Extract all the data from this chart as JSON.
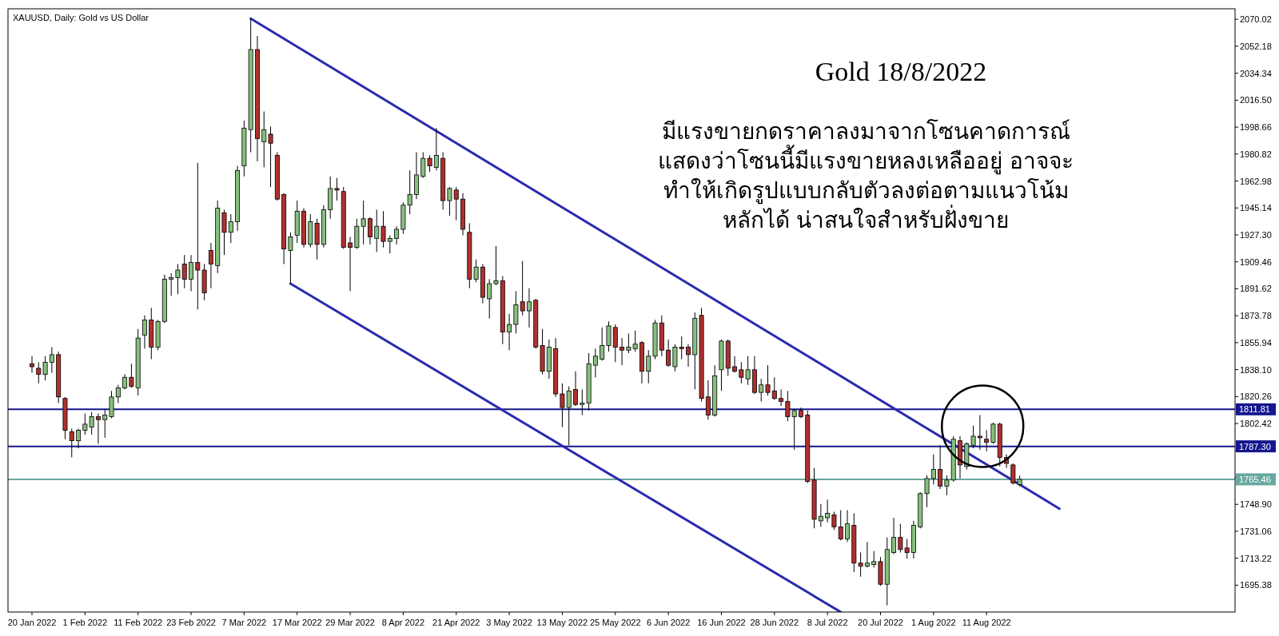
{
  "chart_data": {
    "type": "candlestick",
    "title": "XAUUSD, Daily: Gold vs US Dollar",
    "categories": [
      "20 Jan 2022",
      null,
      null,
      null,
      null,
      null,
      null,
      null,
      "1 Feb 2022",
      null,
      null,
      null,
      null,
      null,
      null,
      null,
      "11 Feb 2022",
      null,
      null,
      null,
      null,
      null,
      null,
      null,
      "23 Feb 2022",
      null,
      null,
      null,
      null,
      null,
      null,
      null,
      "7 Mar 2022",
      null,
      null,
      null,
      null,
      null,
      null,
      null,
      "17 Mar 2022",
      null,
      null,
      null,
      null,
      null,
      null,
      null,
      "29 Mar 2022",
      null,
      null,
      null,
      null,
      null,
      null,
      null,
      "8 Apr 2022",
      null,
      null,
      null,
      null,
      null,
      null,
      null,
      "21 Apr 2022",
      null,
      null,
      null,
      null,
      null,
      null,
      null,
      "3 May 2022",
      null,
      null,
      null,
      null,
      null,
      null,
      null,
      "13 May 2022",
      null,
      null,
      null,
      null,
      null,
      null,
      null,
      "25 May 2022",
      null,
      null,
      null,
      null,
      null,
      null,
      null,
      "6 Jun 2022",
      null,
      null,
      null,
      null,
      null,
      null,
      null,
      "16 Jun 2022",
      null,
      null,
      null,
      null,
      null,
      null,
      null,
      "28 Jun 2022",
      null,
      null,
      null,
      null,
      null,
      null,
      null,
      "8 Jul 2022",
      null,
      null,
      null,
      null,
      null,
      null,
      null,
      "20 Jul 2022",
      null,
      null,
      null,
      null,
      null,
      null,
      null,
      "1 Aug 2022",
      null,
      null,
      null,
      null,
      null,
      null,
      null,
      "11 Aug 2022",
      null,
      null,
      null,
      null,
      null,
      null,
      null,
      null,
      null,
      null,
      null,
      null,
      null,
      null,
      null,
      null,
      null,
      null,
      null,
      null,
      null,
      null,
      null,
      null,
      null,
      null,
      null,
      null,
      null,
      null,
      null,
      null,
      null,
      null,
      null,
      null,
      null
    ],
    "ohlc": [
      [
        1842,
        1847,
        1836,
        1840
      ],
      [
        1839,
        1843,
        1829,
        1835
      ],
      [
        1835,
        1847,
        1831,
        1843
      ],
      [
        1843,
        1853,
        1836,
        1848
      ],
      [
        1848,
        1850,
        1816,
        1820
      ],
      [
        1819,
        1820,
        1792,
        1798
      ],
      [
        1797,
        1799,
        1780,
        1791
      ],
      [
        1791,
        1799,
        1786,
        1798
      ],
      [
        1798,
        1809,
        1795,
        1802
      ],
      [
        1800,
        1810,
        1795,
        1807
      ],
      [
        1807,
        1809,
        1789,
        1805
      ],
      [
        1805,
        1812,
        1793,
        1808
      ],
      [
        1807,
        1824,
        1806,
        1820
      ],
      [
        1820,
        1828,
        1816,
        1826
      ],
      [
        1826,
        1835,
        1825,
        1833
      ],
      [
        1833,
        1842,
        1826,
        1827
      ],
      [
        1826,
        1865,
        1821,
        1859
      ],
      [
        1861,
        1874,
        1852,
        1871
      ],
      [
        1871,
        1879,
        1845,
        1853
      ],
      [
        1853,
        1871,
        1851,
        1870
      ],
      [
        1870,
        1901,
        1869,
        1898
      ],
      [
        1898,
        1902,
        1887,
        1899
      ],
      [
        1899,
        1908,
        1888,
        1904
      ],
      [
        1908,
        1914,
        1892,
        1898
      ],
      [
        1898,
        1914,
        1890,
        1909
      ],
      [
        1909,
        1975,
        1878,
        1904
      ],
      [
        1904,
        1908,
        1884,
        1889
      ],
      [
        1917,
        1922,
        1892,
        1908
      ],
      [
        1907,
        1950,
        1902,
        1945
      ],
      [
        1942,
        1944,
        1914,
        1929
      ],
      [
        1929,
        1941,
        1922,
        1936
      ],
      [
        1936,
        1973,
        1930,
        1970
      ],
      [
        1973,
        2003,
        1966,
        1998
      ],
      [
        1997,
        2070.5,
        1982,
        2050
      ],
      [
        2050,
        2059,
        1976,
        1991
      ],
      [
        1989,
        2009,
        1972,
        1997
      ],
      [
        1994,
        1999,
        1959,
        1988
      ],
      [
        1980,
        1982,
        1950,
        1951
      ],
      [
        1954,
        1955,
        1908,
        1918
      ],
      [
        1917,
        1929,
        1895,
        1926
      ],
      [
        1927,
        1950,
        1922,
        1943
      ],
      [
        1943,
        1945,
        1919,
        1921
      ],
      [
        1921,
        1941,
        1919,
        1936
      ],
      [
        1935,
        1938,
        1911,
        1921
      ],
      [
        1921,
        1947,
        1919,
        1944
      ],
      [
        1944,
        1966,
        1938,
        1958
      ],
      [
        1958,
        1965,
        1950,
        1957
      ],
      [
        1956,
        1959,
        1918,
        1919
      ],
      [
        1922,
        1926,
        1890,
        1919
      ],
      [
        1919,
        1938,
        1918,
        1933
      ],
      [
        1933,
        1950,
        1921,
        1938
      ],
      [
        1938,
        1939,
        1921,
        1926
      ],
      [
        1925,
        1944,
        1916,
        1933
      ],
      [
        1933,
        1943,
        1919,
        1923
      ],
      [
        1923,
        1927,
        1915,
        1925
      ],
      [
        1925,
        1933,
        1921,
        1931
      ],
      [
        1931,
        1949,
        1928,
        1947
      ],
      [
        1947,
        1970,
        1941,
        1954
      ],
      [
        1954,
        1982,
        1951,
        1967
      ],
      [
        1966,
        1982,
        1965,
        1978
      ],
      [
        1978,
        1980,
        1969,
        1973
      ],
      [
        1972,
        1998,
        1970,
        1980
      ],
      [
        1978,
        1982,
        1944,
        1950
      ],
      [
        1950,
        1959,
        1940,
        1958
      ],
      [
        1957,
        1959,
        1937,
        1951
      ],
      [
        1951,
        1955,
        1927,
        1931
      ],
      [
        1929,
        1935,
        1892,
        1898
      ],
      [
        1898,
        1911,
        1896,
        1906
      ],
      [
        1906,
        1908,
        1882,
        1886
      ],
      [
        1885,
        1898,
        1872,
        1895
      ],
      [
        1895,
        1920,
        1894,
        1897
      ],
      [
        1897,
        1900,
        1855,
        1863
      ],
      [
        1863,
        1875,
        1851,
        1868
      ],
      [
        1868,
        1890,
        1862,
        1881
      ],
      [
        1883,
        1910,
        1874,
        1877
      ],
      [
        1877,
        1892,
        1866,
        1883
      ],
      [
        1884,
        1885,
        1852,
        1853
      ],
      [
        1854,
        1865,
        1835,
        1837
      ],
      [
        1837,
        1858,
        1832,
        1853
      ],
      [
        1852,
        1859,
        1820,
        1822
      ],
      [
        1822,
        1829,
        1800,
        1813
      ],
      [
        1813,
        1827,
        1788,
        1824
      ],
      [
        1825,
        1837,
        1814,
        1815
      ],
      [
        1815,
        1825,
        1808,
        1816
      ],
      [
        1816,
        1849,
        1811,
        1842
      ],
      [
        1841,
        1852,
        1833,
        1847
      ],
      [
        1845,
        1866,
        1844,
        1854
      ],
      [
        1854,
        1870,
        1850,
        1867
      ],
      [
        1866,
        1868,
        1843,
        1853
      ],
      [
        1853,
        1859,
        1841,
        1851
      ],
      [
        1851,
        1862,
        1849,
        1853
      ],
      [
        1852,
        1864,
        1850,
        1855
      ],
      [
        1856,
        1857,
        1829,
        1837
      ],
      [
        1837,
        1851,
        1829,
        1847
      ],
      [
        1847,
        1871,
        1845,
        1869
      ],
      [
        1869,
        1874,
        1847,
        1851
      ],
      [
        1851,
        1858,
        1840,
        1841
      ],
      [
        1840,
        1855,
        1837,
        1853
      ],
      [
        1853,
        1860,
        1845,
        1852
      ],
      [
        1853,
        1855,
        1840,
        1848
      ],
      [
        1848,
        1876,
        1825,
        1872
      ],
      [
        1874,
        1879,
        1817,
        1819
      ],
      [
        1820,
        1831,
        1805,
        1808
      ],
      [
        1808,
        1841,
        1807,
        1834
      ],
      [
        1838,
        1858,
        1824,
        1857
      ],
      [
        1857,
        1858,
        1834,
        1839
      ],
      [
        1840,
        1847,
        1836,
        1837
      ],
      [
        1838,
        1843,
        1829,
        1833
      ],
      [
        1832,
        1847,
        1828,
        1838
      ],
      [
        1838,
        1847,
        1822,
        1823
      ],
      [
        1823,
        1832,
        1817,
        1828
      ],
      [
        1828,
        1841,
        1821,
        1823
      ],
      [
        1824,
        1833,
        1818,
        1819
      ],
      [
        1819,
        1825,
        1814,
        1817
      ],
      [
        1817,
        1824,
        1804,
        1807
      ],
      [
        1807,
        1812,
        1785,
        1811
      ],
      [
        1811,
        1813,
        1806,
        1807
      ],
      [
        1808,
        1811,
        1763,
        1764
      ],
      [
        1765,
        1773,
        1733,
        1739
      ],
      [
        1738,
        1749,
        1734,
        1741
      ],
      [
        1740,
        1752,
        1737,
        1743
      ],
      [
        1742,
        1744,
        1732,
        1734
      ],
      [
        1734,
        1745,
        1725,
        1726
      ],
      [
        1726,
        1745,
        1724,
        1736
      ],
      [
        1735,
        1743,
        1704,
        1710
      ],
      [
        1710,
        1717,
        1701,
        1708
      ],
      [
        1708,
        1724,
        1707,
        1710
      ],
      [
        1709,
        1718,
        1707,
        1711
      ],
      [
        1711,
        1714,
        1695,
        1696
      ],
      [
        1696,
        1727,
        1682,
        1719
      ],
      [
        1717,
        1740,
        1716,
        1727
      ],
      [
        1727,
        1736,
        1717,
        1719
      ],
      [
        1720,
        1726,
        1713,
        1717
      ],
      [
        1717,
        1738,
        1713,
        1735
      ],
      [
        1734,
        1757,
        1733,
        1756
      ],
      [
        1756,
        1768,
        1747,
        1766
      ],
      [
        1766,
        1782,
        1762,
        1772
      ],
      [
        1772,
        1788,
        1759,
        1761
      ],
      [
        1761,
        1768,
        1755,
        1765
      ],
      [
        1765,
        1794,
        1764,
        1792
      ],
      [
        1791,
        1794,
        1766,
        1775
      ],
      [
        1774,
        1790,
        1772,
        1789
      ],
      [
        1788,
        1801,
        1786,
        1794
      ],
      [
        1794,
        1808,
        1785,
        1793
      ],
      [
        1792,
        1798,
        1784,
        1790
      ],
      [
        1790,
        1803,
        1789,
        1802
      ],
      [
        1802,
        1803,
        1774,
        1780
      ],
      [
        1780,
        1782,
        1773,
        1776
      ],
      [
        1775,
        1776,
        1762,
        1763
      ],
      [
        1762,
        1768,
        1761,
        1765.46
      ],
      null,
      null,
      null,
      null,
      null,
      null,
      null,
      null,
      null,
      null,
      null,
      null,
      null,
      null,
      null,
      null,
      null,
      null,
      null,
      null,
      null,
      null,
      null,
      null,
      null,
      null,
      null,
      null,
      null,
      null,
      null,
      null
    ],
    "series": [
      {
        "type": "line",
        "color": "#2a2ab0",
        "values": [
          null,
          null,
          null,
          null,
          null,
          null,
          null,
          null,
          null,
          null,
          null,
          null,
          null,
          null,
          null,
          null,
          null,
          null,
          null,
          null,
          null,
          null,
          null,
          null,
          null,
          null,
          null,
          null,
          null,
          null,
          null,
          null,
          null,
          2070.5,
          null,
          null,
          null,
          null,
          null,
          null,
          null,
          null,
          null,
          null,
          null,
          null,
          null,
          null,
          null,
          null,
          null,
          null,
          null,
          null,
          null,
          null,
          null,
          null,
          null,
          null,
          null,
          null,
          null,
          null,
          null,
          null,
          null,
          null,
          null,
          null,
          null,
          null,
          null,
          null,
          null,
          null,
          null,
          null,
          null,
          null,
          null,
          null,
          null,
          null,
          null,
          null,
          null,
          null,
          null,
          null,
          null,
          null,
          null,
          null,
          null,
          null,
          null,
          null,
          null,
          null,
          null,
          null,
          null,
          null,
          null,
          null,
          null,
          null,
          null,
          null,
          null,
          null,
          null,
          null,
          null,
          null,
          null,
          null,
          null,
          null,
          null,
          null,
          null,
          null,
          null,
          null,
          null,
          null,
          null,
          null,
          null,
          null,
          null,
          null,
          null,
          null,
          null,
          null,
          null,
          null,
          null,
          null,
          null,
          null,
          null,
          null,
          null,
          null,
          null,
          null,
          null,
          null,
          null,
          null,
          null,
          1746,
          null,
          null,
          null,
          null,
          null,
          null,
          null,
          null,
          null,
          null,
          null,
          null,
          null,
          null,
          null,
          null,
          null,
          null,
          null,
          null,
          null,
          null,
          null,
          null,
          null,
          null
        ]
      },
      {
        "type": "line",
        "color": "#2a2ab0",
        "values": [
          null,
          null,
          null,
          null,
          null,
          null,
          null,
          null,
          null,
          null,
          null,
          null,
          null,
          null,
          null,
          null,
          null,
          null,
          null,
          null,
          null,
          null,
          null,
          null,
          null,
          null,
          null,
          null,
          null,
          null,
          null,
          null,
          null,
          null,
          null,
          null,
          null,
          null,
          null,
          1895,
          null,
          null,
          null,
          null,
          null,
          null,
          null,
          null,
          null,
          null,
          null,
          null,
          null,
          null,
          null,
          null,
          null,
          null,
          null,
          null,
          null,
          null,
          null,
          null,
          null,
          null,
          null,
          null,
          null,
          null,
          null,
          null,
          null,
          null,
          null,
          null,
          null,
          null,
          null,
          null,
          null,
          null,
          null,
          null,
          null,
          null,
          null,
          null,
          null,
          null,
          null,
          null,
          null,
          null,
          null,
          null,
          null,
          null,
          null,
          null,
          null,
          null,
          null,
          null,
          null,
          null,
          null,
          null,
          null,
          null,
          null,
          null,
          null,
          null,
          null,
          null,
          null,
          null,
          null,
          null,
          null,
          null,
          1677.6,
          null,
          null,
          null,
          null,
          null,
          null,
          null,
          null,
          null,
          null,
          null,
          null,
          null,
          null,
          null,
          null,
          null,
          null,
          null,
          null,
          null,
          null,
          null,
          null,
          null,
          null,
          null,
          null,
          null,
          null,
          null,
          null,
          null,
          null,
          null,
          null,
          null,
          null,
          null,
          null,
          null,
          null,
          null,
          null,
          null,
          null,
          null,
          null,
          null,
          null,
          null,
          null,
          null,
          null,
          null,
          null,
          null,
          null,
          null
        ]
      }
    ],
    "ylim": [
      1677.6,
      2077
    ],
    "yticks": [
      2070.02,
      2052.18,
      2034.34,
      {
        "value": 2016.5,
        "label": "2016.50"
      },
      1998.66,
      1980.82,
      1962.98,
      1945.14,
      {
        "value": 1927.3,
        "label": "1927.30"
      },
      1909.46,
      1891.62,
      1873.78,
      1855.94,
      {
        "value": 1838.1,
        "label": "1838.10"
      },
      1820.26,
      1802.42,
      {
        "value": 1784.58,
        "label": null
      },
      {
        "value": 1766.74,
        "label": null
      },
      {
        "value": 1748.9,
        "label": "1748.90"
      },
      1731.06,
      1713.22,
      1695.38
    ],
    "ref_lines": [
      {
        "axis": "y",
        "value": 1811.81,
        "label": "1811.81",
        "color": "#16168e"
      },
      {
        "axis": "y",
        "value": 1787.3,
        "label": "1787.30",
        "color": "#16168e"
      },
      {
        "axis": "y",
        "value": 1765.46,
        "label": "1765.46",
        "color": "#68a8a0"
      }
    ],
    "annotations": [
      "Gold 18/8/2022",
      "มีแรงขายกดราคาลงมาจากโซนคาดการณ์",
      "แสดงว่าโซนนี้มีแรงขายหลงเหลืออยู่ อาจจะ",
      "ทำให้เกิดรูปแบบกลับตัวลงต่อตามแนวโน้ม",
      "หลักได้ น่าสนใจสำหรับฝั่งขาย"
    ]
  }
}
